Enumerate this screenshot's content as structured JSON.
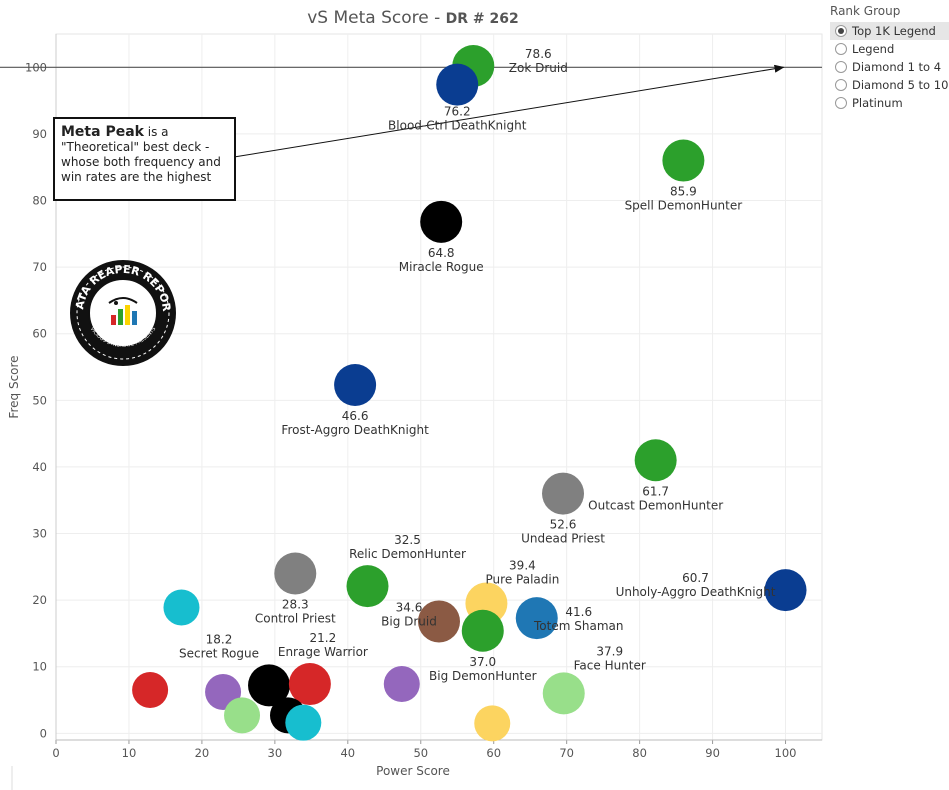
{
  "chart_data": {
    "type": "scatter",
    "title": "vS Meta Score",
    "subtitle": "DR # 262",
    "xlabel": "Power Score",
    "ylabel": "Freq Score",
    "xlim": [
      0,
      105
    ],
    "ylim": [
      -1,
      105
    ],
    "xticks": [
      "0",
      "10",
      "20",
      "30",
      "40",
      "50",
      "60",
      "70",
      "80",
      "90",
      "100"
    ],
    "yticks": [
      "0",
      "10",
      "20",
      "30",
      "40",
      "50",
      "60",
      "70",
      "80",
      "90",
      "100"
    ],
    "grid": true,
    "reference_line_y": 100,
    "points": [
      {
        "x": 57.2,
        "y": 100.2,
        "color": "#2ca02c",
        "name": "Zok Druid",
        "score": "78.6"
      },
      {
        "x": 55.0,
        "y": 97.4,
        "color": "#0a3d91",
        "name": "Blood-Ctrl DeathKnight",
        "score": "76.2"
      },
      {
        "x": 86.0,
        "y": 86.0,
        "color": "#2ca02c",
        "name": "Spell DemonHunter",
        "score": "85.9"
      },
      {
        "x": 52.8,
        "y": 76.8,
        "color": "#000000",
        "name": "Miracle Rogue",
        "score": "64.8"
      },
      {
        "x": 41.0,
        "y": 52.3,
        "color": "#0a3d91",
        "name": "Frost-Aggro DeathKnight",
        "score": "46.6"
      },
      {
        "x": 82.2,
        "y": 41.0,
        "color": "#2ca02c",
        "name": "Outcast DemonHunter",
        "score": "61.7"
      },
      {
        "x": 69.5,
        "y": 36.0,
        "color": "#808080",
        "name": "Undead Priest",
        "score": "52.6"
      },
      {
        "x": 100.0,
        "y": 21.5,
        "color": "#0a3d91",
        "name": "Unholy-Aggro DeathKnight",
        "score": "60.7"
      },
      {
        "x": 32.8,
        "y": 24.0,
        "color": "#808080",
        "name": "Control Priest",
        "score": "28.3"
      },
      {
        "x": 42.7,
        "y": 22.1,
        "color": "#2ca02c",
        "name": "Relic DemonHunter",
        "score": "32.5"
      },
      {
        "x": 59.0,
        "y": 19.5,
        "color": "#fcd460",
        "name": "Pure Paladin",
        "score": "39.4"
      },
      {
        "x": 65.9,
        "y": 17.3,
        "color": "#1f77b4",
        "name": "Totem Shaman",
        "score": "41.6"
      },
      {
        "x": 52.5,
        "y": 16.8,
        "color": "#8b5a44",
        "name": "Big Druid",
        "score": "34.6"
      },
      {
        "x": 58.5,
        "y": 15.4,
        "color": "#2ca02c",
        "name": "Big DemonHunter",
        "score": "37.0"
      },
      {
        "x": 17.2,
        "y": 18.9,
        "color": "#17becf",
        "name": "",
        "score": ""
      },
      {
        "x": 69.6,
        "y": 6.0,
        "color": "#98df8a",
        "name": "Face Hunter",
        "score": "37.9"
      },
      {
        "x": 29.2,
        "y": 7.2,
        "color": "#000000",
        "name": "Secret Rogue",
        "score": "18.2"
      },
      {
        "x": 34.8,
        "y": 7.4,
        "color": "#d62728",
        "name": "Enrage Warrior",
        "score": "21.2"
      },
      {
        "x": 47.4,
        "y": 7.4,
        "color": "#9467bd",
        "name": "",
        "score": ""
      },
      {
        "x": 12.9,
        "y": 6.5,
        "color": "#d62728",
        "name": "",
        "score": ""
      },
      {
        "x": 22.9,
        "y": 6.2,
        "color": "#9467bd",
        "name": "",
        "score": ""
      },
      {
        "x": 25.5,
        "y": 2.7,
        "color": "#98df8a",
        "name": "",
        "score": ""
      },
      {
        "x": 31.8,
        "y": 2.7,
        "color": "#000000",
        "name": "",
        "score": ""
      },
      {
        "x": 33.9,
        "y": 1.6,
        "color": "#17becf",
        "name": "",
        "score": ""
      },
      {
        "x": 59.8,
        "y": 1.5,
        "color": "#fcd460",
        "name": "",
        "score": ""
      }
    ]
  },
  "annotation": {
    "bold": "Meta Peak",
    "text": " is a \"Theoretical\" best deck - whose both frequency and win rates are the highest"
  },
  "logo": {
    "top_text": "DATA REAPER REPORT",
    "bottom_text": "VICIOUS SYNDICATE PRESENTS"
  },
  "rank_group": {
    "title": "Rank Group",
    "options": [
      "Top 1K Legend",
      "Legend",
      "Diamond 1 to 4",
      "Diamond 5 to 10",
      "Platinum"
    ],
    "selected": 0
  }
}
